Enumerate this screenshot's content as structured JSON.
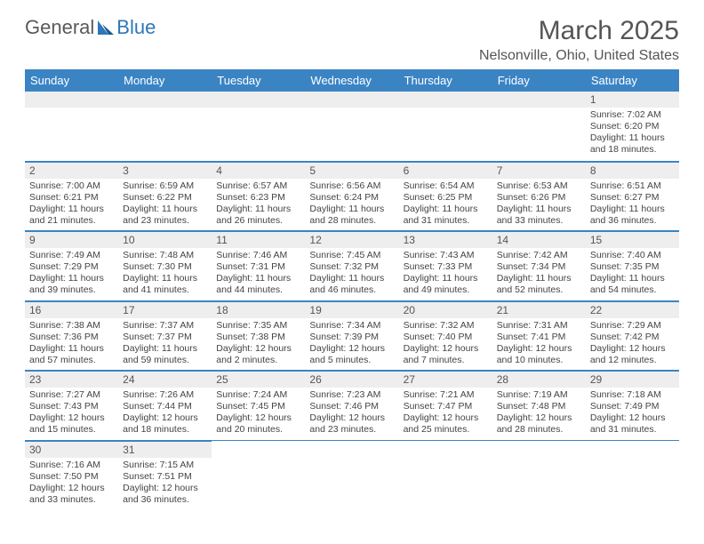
{
  "logo": {
    "part1": "General",
    "part2": "Blue"
  },
  "title": "March 2025",
  "location": "Nelsonville, Ohio, United States",
  "colors": {
    "header_bg": "#3b84c4",
    "header_text": "#ffffff",
    "grid_line": "#3b84c4",
    "daynum_bg": "#eeeeee",
    "text": "#444444"
  },
  "daysOfWeek": [
    "Sunday",
    "Monday",
    "Tuesday",
    "Wednesday",
    "Thursday",
    "Friday",
    "Saturday"
  ],
  "weeks": [
    [
      null,
      null,
      null,
      null,
      null,
      null,
      {
        "n": "1",
        "sunrise": "Sunrise: 7:02 AM",
        "sunset": "Sunset: 6:20 PM",
        "day1": "Daylight: 11 hours",
        "day2": "and 18 minutes."
      }
    ],
    [
      {
        "n": "2",
        "sunrise": "Sunrise: 7:00 AM",
        "sunset": "Sunset: 6:21 PM",
        "day1": "Daylight: 11 hours",
        "day2": "and 21 minutes."
      },
      {
        "n": "3",
        "sunrise": "Sunrise: 6:59 AM",
        "sunset": "Sunset: 6:22 PM",
        "day1": "Daylight: 11 hours",
        "day2": "and 23 minutes."
      },
      {
        "n": "4",
        "sunrise": "Sunrise: 6:57 AM",
        "sunset": "Sunset: 6:23 PM",
        "day1": "Daylight: 11 hours",
        "day2": "and 26 minutes."
      },
      {
        "n": "5",
        "sunrise": "Sunrise: 6:56 AM",
        "sunset": "Sunset: 6:24 PM",
        "day1": "Daylight: 11 hours",
        "day2": "and 28 minutes."
      },
      {
        "n": "6",
        "sunrise": "Sunrise: 6:54 AM",
        "sunset": "Sunset: 6:25 PM",
        "day1": "Daylight: 11 hours",
        "day2": "and 31 minutes."
      },
      {
        "n": "7",
        "sunrise": "Sunrise: 6:53 AM",
        "sunset": "Sunset: 6:26 PM",
        "day1": "Daylight: 11 hours",
        "day2": "and 33 minutes."
      },
      {
        "n": "8",
        "sunrise": "Sunrise: 6:51 AM",
        "sunset": "Sunset: 6:27 PM",
        "day1": "Daylight: 11 hours",
        "day2": "and 36 minutes."
      }
    ],
    [
      {
        "n": "9",
        "sunrise": "Sunrise: 7:49 AM",
        "sunset": "Sunset: 7:29 PM",
        "day1": "Daylight: 11 hours",
        "day2": "and 39 minutes."
      },
      {
        "n": "10",
        "sunrise": "Sunrise: 7:48 AM",
        "sunset": "Sunset: 7:30 PM",
        "day1": "Daylight: 11 hours",
        "day2": "and 41 minutes."
      },
      {
        "n": "11",
        "sunrise": "Sunrise: 7:46 AM",
        "sunset": "Sunset: 7:31 PM",
        "day1": "Daylight: 11 hours",
        "day2": "and 44 minutes."
      },
      {
        "n": "12",
        "sunrise": "Sunrise: 7:45 AM",
        "sunset": "Sunset: 7:32 PM",
        "day1": "Daylight: 11 hours",
        "day2": "and 46 minutes."
      },
      {
        "n": "13",
        "sunrise": "Sunrise: 7:43 AM",
        "sunset": "Sunset: 7:33 PM",
        "day1": "Daylight: 11 hours",
        "day2": "and 49 minutes."
      },
      {
        "n": "14",
        "sunrise": "Sunrise: 7:42 AM",
        "sunset": "Sunset: 7:34 PM",
        "day1": "Daylight: 11 hours",
        "day2": "and 52 minutes."
      },
      {
        "n": "15",
        "sunrise": "Sunrise: 7:40 AM",
        "sunset": "Sunset: 7:35 PM",
        "day1": "Daylight: 11 hours",
        "day2": "and 54 minutes."
      }
    ],
    [
      {
        "n": "16",
        "sunrise": "Sunrise: 7:38 AM",
        "sunset": "Sunset: 7:36 PM",
        "day1": "Daylight: 11 hours",
        "day2": "and 57 minutes."
      },
      {
        "n": "17",
        "sunrise": "Sunrise: 7:37 AM",
        "sunset": "Sunset: 7:37 PM",
        "day1": "Daylight: 11 hours",
        "day2": "and 59 minutes."
      },
      {
        "n": "18",
        "sunrise": "Sunrise: 7:35 AM",
        "sunset": "Sunset: 7:38 PM",
        "day1": "Daylight: 12 hours",
        "day2": "and 2 minutes."
      },
      {
        "n": "19",
        "sunrise": "Sunrise: 7:34 AM",
        "sunset": "Sunset: 7:39 PM",
        "day1": "Daylight: 12 hours",
        "day2": "and 5 minutes."
      },
      {
        "n": "20",
        "sunrise": "Sunrise: 7:32 AM",
        "sunset": "Sunset: 7:40 PM",
        "day1": "Daylight: 12 hours",
        "day2": "and 7 minutes."
      },
      {
        "n": "21",
        "sunrise": "Sunrise: 7:31 AM",
        "sunset": "Sunset: 7:41 PM",
        "day1": "Daylight: 12 hours",
        "day2": "and 10 minutes."
      },
      {
        "n": "22",
        "sunrise": "Sunrise: 7:29 AM",
        "sunset": "Sunset: 7:42 PM",
        "day1": "Daylight: 12 hours",
        "day2": "and 12 minutes."
      }
    ],
    [
      {
        "n": "23",
        "sunrise": "Sunrise: 7:27 AM",
        "sunset": "Sunset: 7:43 PM",
        "day1": "Daylight: 12 hours",
        "day2": "and 15 minutes."
      },
      {
        "n": "24",
        "sunrise": "Sunrise: 7:26 AM",
        "sunset": "Sunset: 7:44 PM",
        "day1": "Daylight: 12 hours",
        "day2": "and 18 minutes."
      },
      {
        "n": "25",
        "sunrise": "Sunrise: 7:24 AM",
        "sunset": "Sunset: 7:45 PM",
        "day1": "Daylight: 12 hours",
        "day2": "and 20 minutes."
      },
      {
        "n": "26",
        "sunrise": "Sunrise: 7:23 AM",
        "sunset": "Sunset: 7:46 PM",
        "day1": "Daylight: 12 hours",
        "day2": "and 23 minutes."
      },
      {
        "n": "27",
        "sunrise": "Sunrise: 7:21 AM",
        "sunset": "Sunset: 7:47 PM",
        "day1": "Daylight: 12 hours",
        "day2": "and 25 minutes."
      },
      {
        "n": "28",
        "sunrise": "Sunrise: 7:19 AM",
        "sunset": "Sunset: 7:48 PM",
        "day1": "Daylight: 12 hours",
        "day2": "and 28 minutes."
      },
      {
        "n": "29",
        "sunrise": "Sunrise: 7:18 AM",
        "sunset": "Sunset: 7:49 PM",
        "day1": "Daylight: 12 hours",
        "day2": "and 31 minutes."
      }
    ],
    [
      {
        "n": "30",
        "sunrise": "Sunrise: 7:16 AM",
        "sunset": "Sunset: 7:50 PM",
        "day1": "Daylight: 12 hours",
        "day2": "and 33 minutes."
      },
      {
        "n": "31",
        "sunrise": "Sunrise: 7:15 AM",
        "sunset": "Sunset: 7:51 PM",
        "day1": "Daylight: 12 hours",
        "day2": "and 36 minutes."
      },
      null,
      null,
      null,
      null,
      null
    ]
  ]
}
